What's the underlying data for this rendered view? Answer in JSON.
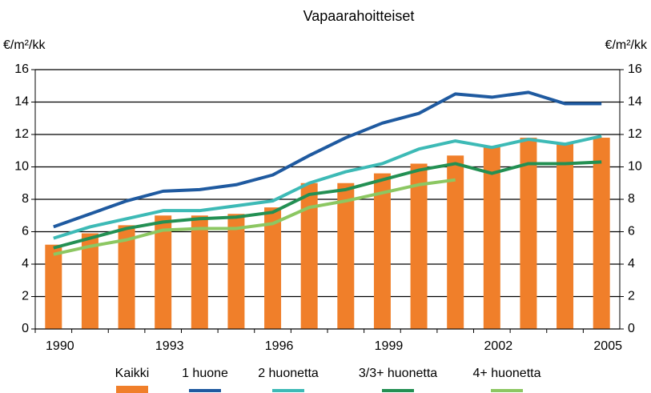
{
  "chart_data": {
    "type": "bar_line",
    "title": "Vapaarahoitteiset",
    "ylabel": "€/m²/kk",
    "y2label": "€/m²/kk",
    "categories": [
      "1990",
      null,
      null,
      "1993",
      null,
      null,
      "1996",
      null,
      null,
      "1999",
      null,
      null,
      "2002",
      null,
      null,
      "2005"
    ],
    "series": [
      {
        "name": "Kaikki",
        "type": "bar",
        "color": "#f07f2a",
        "values": [
          5.2,
          5.9,
          6.4,
          7.0,
          7.0,
          7.1,
          7.5,
          9.0,
          9.0,
          9.6,
          10.2,
          10.7,
          11.3,
          11.8,
          11.5,
          11.8
        ]
      },
      {
        "name": "1 huone",
        "type": "line",
        "color": "#1f5aa0",
        "values": [
          6.3,
          7.1,
          7.9,
          8.5,
          8.6,
          8.9,
          9.5,
          10.7,
          11.8,
          12.7,
          13.3,
          14.5,
          14.3,
          14.6,
          13.9,
          13.9
        ]
      },
      {
        "name": "2 huonetta",
        "type": "line",
        "color": "#3dbab6",
        "values": [
          5.6,
          6.3,
          6.8,
          7.3,
          7.3,
          7.6,
          7.9,
          9.0,
          9.7,
          10.2,
          11.1,
          11.6,
          11.2,
          11.7,
          11.4,
          11.9
        ]
      },
      {
        "name": "3/3+ huonetta",
        "type": "line",
        "color": "#239053",
        "values": [
          5.0,
          5.6,
          6.2,
          6.6,
          6.8,
          6.9,
          7.2,
          8.3,
          8.6,
          9.2,
          9.8,
          10.2,
          9.6,
          10.2,
          10.2,
          10.3
        ]
      },
      {
        "name": "4+ huonetta",
        "type": "line",
        "color": "#8cc762",
        "values": [
          4.6,
          5.1,
          5.5,
          6.1,
          6.2,
          6.2,
          6.5,
          7.5,
          7.9,
          8.4,
          8.9,
          9.2,
          null,
          null,
          null,
          null
        ]
      }
    ],
    "ylim": [
      0,
      16
    ],
    "yticks": [
      0,
      2,
      4,
      6,
      8,
      10,
      12,
      14,
      16
    ],
    "y2lim": [
      0,
      16
    ],
    "y2ticks": [
      0,
      2,
      4,
      6,
      8,
      10,
      12,
      14,
      16
    ],
    "grid": true,
    "legend": "bottom"
  }
}
